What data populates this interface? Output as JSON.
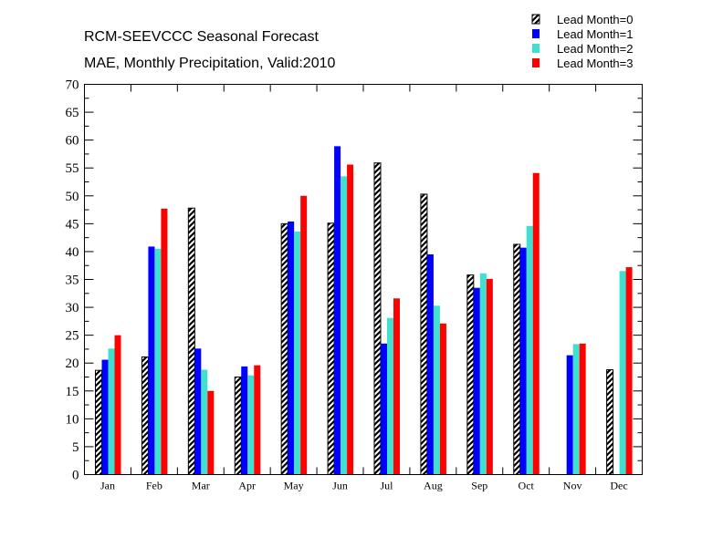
{
  "chart_data": {
    "type": "bar",
    "title": "RCM-SEEVCCC Seasonal Forecast",
    "subtitle": "MAE, Monthly Precipitation, Valid:2010",
    "xlabel": "",
    "ylabel": "",
    "ylim": [
      0,
      70
    ],
    "ytick_step": 5,
    "grid": false,
    "legend_position": "top-right",
    "categories": [
      "Jan",
      "Feb",
      "Mar",
      "Apr",
      "May",
      "Jun",
      "Jul",
      "Aug",
      "Sep",
      "Oct",
      "Nov",
      "Dec"
    ],
    "series": [
      {
        "name": "Lead Month=0",
        "color": "#000000",
        "pattern": "hatched",
        "values": [
          18.7,
          21.1,
          47.8,
          17.5,
          45.0,
          45.1,
          55.9,
          50.3,
          35.8,
          41.3,
          null,
          18.8
        ]
      },
      {
        "name": "Lead Month=1",
        "color": "#0000ff",
        "pattern": "solid",
        "values": [
          20.6,
          40.9,
          22.6,
          19.4,
          45.4,
          58.9,
          23.5,
          39.5,
          33.5,
          40.7,
          21.4,
          null
        ]
      },
      {
        "name": "Lead Month=2",
        "color": "#40e0d0",
        "pattern": "solid",
        "values": [
          22.6,
          40.5,
          18.8,
          17.8,
          43.6,
          53.5,
          28.1,
          30.3,
          36.1,
          44.6,
          23.4,
          36.5
        ]
      },
      {
        "name": "Lead Month=3",
        "color": "#ff0000",
        "pattern": "solid",
        "values": [
          25.0,
          47.7,
          15.0,
          19.6,
          50.0,
          55.6,
          31.6,
          27.1,
          35.1,
          54.1,
          23.5,
          37.2
        ]
      }
    ]
  }
}
